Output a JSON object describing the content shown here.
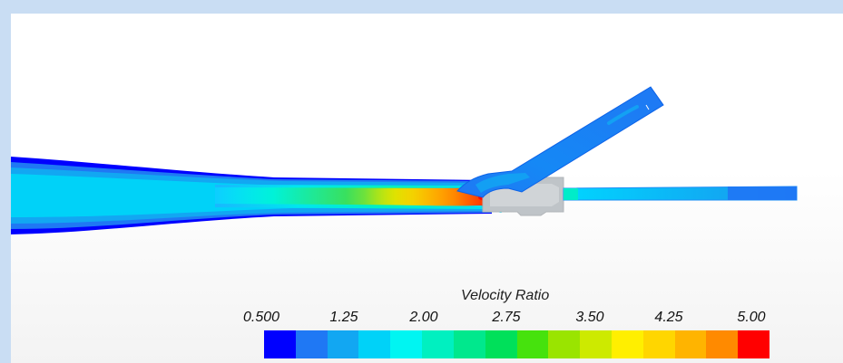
{
  "legend": {
    "title": "Velocity Ratio",
    "ticks": [
      "0.500",
      "1.25",
      "2.00",
      "2.75",
      "3.50",
      "4.25",
      "5.00"
    ],
    "colors": [
      "#0000ff",
      "#1f78f4",
      "#12a7f2",
      "#00d2f8",
      "#00f5f2",
      "#00f0c0",
      "#00e88d",
      "#00e05a",
      "#46e20d",
      "#9ae400",
      "#cdea00",
      "#ffef00",
      "#ffd600",
      "#ffb400",
      "#ff8a00",
      "#ff0000"
    ]
  }
}
